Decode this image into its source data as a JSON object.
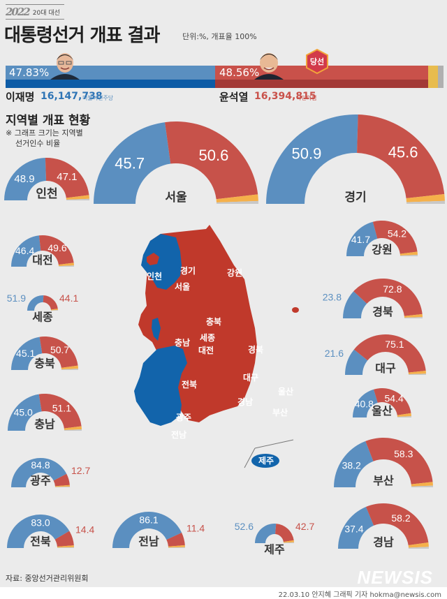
{
  "header": {
    "logo_year": "2022",
    "logo_sub": "20대 대선",
    "title": "대통령선거 개표 결과",
    "unit": "단위:%, 개표율 100%"
  },
  "candidates": [
    {
      "name": "이재명",
      "pct": "47.83%",
      "votes": "16,147,738",
      "party": "더불어민주당",
      "color": "#5a8fc0",
      "dark": "#0d5ca6"
    },
    {
      "name": "윤석열",
      "pct": "48.56%",
      "votes": "16,394,815",
      "party": "국민의힘",
      "color": "#c9514a",
      "dark": "#a33a37",
      "badge": "당선"
    }
  ],
  "others_colors": {
    "yellow": "#e8bc4e",
    "gray": "#b0b0b0"
  },
  "regional": {
    "title": "지역별 개표 현황",
    "note_line1": "※ 그래프 크기는 지역별",
    "note_line2": "선거인수 비율"
  },
  "map_labels": [
    "경기",
    "인천",
    "서울",
    "강원",
    "충북",
    "충남",
    "세종",
    "대전",
    "경북",
    "대구",
    "전북",
    "울산",
    "경남",
    "광주",
    "부산",
    "전남",
    "제주"
  ],
  "chart_data": {
    "type": "semi-donut",
    "title": "지역별 개표 현황",
    "unit": "%",
    "series_names": [
      "이재명 (더불어민주당)",
      "윤석열 (국민의힘)"
    ],
    "regions": [
      {
        "name": "인천",
        "lee": 48.9,
        "yoon": 47.1
      },
      {
        "name": "서울",
        "lee": 45.7,
        "yoon": 50.6
      },
      {
        "name": "경기",
        "lee": 50.9,
        "yoon": 45.6
      },
      {
        "name": "대전",
        "lee": 46.4,
        "yoon": 49.6
      },
      {
        "name": "세종",
        "lee": 51.9,
        "yoon": 44.1
      },
      {
        "name": "충북",
        "lee": 45.1,
        "yoon": 50.7
      },
      {
        "name": "충남",
        "lee": 45.0,
        "yoon": 51.1
      },
      {
        "name": "광주",
        "lee": 84.8,
        "yoon": 12.7
      },
      {
        "name": "전북",
        "lee": 83.0,
        "yoon": 14.4
      },
      {
        "name": "전남",
        "lee": 86.1,
        "yoon": 11.4
      },
      {
        "name": "제주",
        "lee": 52.6,
        "yoon": 42.7
      },
      {
        "name": "강원",
        "lee": 41.7,
        "yoon": 54.2
      },
      {
        "name": "경북",
        "lee": 23.8,
        "yoon": 72.8
      },
      {
        "name": "대구",
        "lee": 21.6,
        "yoon": 75.1
      },
      {
        "name": "울산",
        "lee": 40.8,
        "yoon": 54.4
      },
      {
        "name": "부산",
        "lee": 38.2,
        "yoon": 58.3
      },
      {
        "name": "경남",
        "lee": 37.4,
        "yoon": 58.2
      }
    ],
    "national": {
      "lee": 47.83,
      "yoon": 48.56
    }
  },
  "footer": {
    "source": "자료: 중앙선거관리위원회",
    "credit": "22.03.10 안지혜 그래픽 기자 hokma@newsis.com",
    "brand": "NEWSIS"
  }
}
